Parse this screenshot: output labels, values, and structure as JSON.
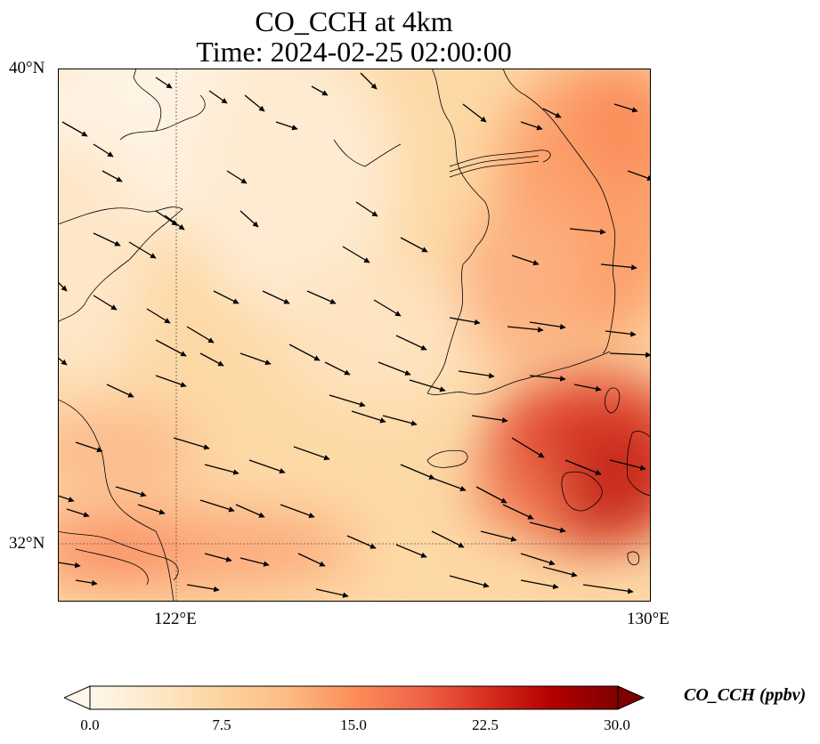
{
  "title": {
    "line1": "CO_CCH at 4km",
    "line2": "Time: 2024-02-25 02:00:00"
  },
  "axes": {
    "lat_labels": [
      "40°N",
      "32°N"
    ],
    "lon_labels": [
      "122°E",
      "130°E"
    ]
  },
  "colorbar": {
    "label": "CO_CCH (ppbv)",
    "ticks": [
      "0.0",
      "7.5",
      "15.0",
      "22.5",
      "30.0"
    ],
    "vmin": 0,
    "vmax": 30,
    "extend": "both",
    "colormap": "OrRd",
    "colors": [
      "#fff7ec",
      "#fee8c8",
      "#fdd49e",
      "#fdbb84",
      "#fc8d59",
      "#ef6548",
      "#d7301f",
      "#b30000",
      "#7f0000"
    ]
  },
  "map": {
    "lon_range": [
      120,
      130
    ],
    "lat_range": [
      31,
      40
    ],
    "gridlines": "dotted at 122°E and 32°N",
    "coastlines": true,
    "wind_vectors": true
  }
}
